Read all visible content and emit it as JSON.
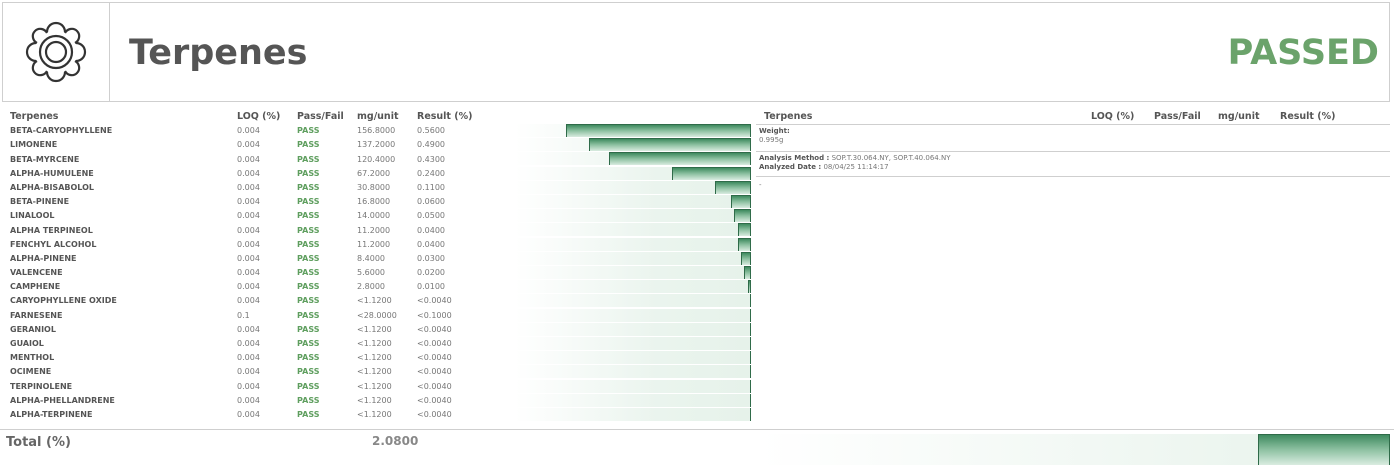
{
  "header": {
    "title": "Terpenes",
    "status": "PASSED",
    "logo_icon": "flower-icon"
  },
  "table": {
    "columns": [
      "Terpenes",
      "LOQ (%)",
      "Pass/Fail",
      "mg/unit",
      "Result (%)"
    ],
    "rows": [
      {
        "name": "BETA-CARYOPHYLLENE",
        "loq": "0.004",
        "pf": "PASS",
        "mg": "156.8000",
        "res": "0.5600",
        "bar": 0.56
      },
      {
        "name": "LIMONENE",
        "loq": "0.004",
        "pf": "PASS",
        "mg": "137.2000",
        "res": "0.4900",
        "bar": 0.49
      },
      {
        "name": "BETA-MYRCENE",
        "loq": "0.004",
        "pf": "PASS",
        "mg": "120.4000",
        "res": "0.4300",
        "bar": 0.43
      },
      {
        "name": "ALPHA-HUMULENE",
        "loq": "0.004",
        "pf": "PASS",
        "mg": "67.2000",
        "res": "0.2400",
        "bar": 0.24
      },
      {
        "name": "ALPHA-BISABOLOL",
        "loq": "0.004",
        "pf": "PASS",
        "mg": "30.8000",
        "res": "0.1100",
        "bar": 0.11
      },
      {
        "name": "BETA-PINENE",
        "loq": "0.004",
        "pf": "PASS",
        "mg": "16.8000",
        "res": "0.0600",
        "bar": 0.06
      },
      {
        "name": "LINALOOL",
        "loq": "0.004",
        "pf": "PASS",
        "mg": "14.0000",
        "res": "0.0500",
        "bar": 0.05
      },
      {
        "name": "ALPHA TERPINEOL",
        "loq": "0.004",
        "pf": "PASS",
        "mg": "11.2000",
        "res": "0.0400",
        "bar": 0.04
      },
      {
        "name": "FENCHYL ALCOHOL",
        "loq": "0.004",
        "pf": "PASS",
        "mg": "11.2000",
        "res": "0.0400",
        "bar": 0.04
      },
      {
        "name": "ALPHA-PINENE",
        "loq": "0.004",
        "pf": "PASS",
        "mg": "8.4000",
        "res": "0.0300",
        "bar": 0.03
      },
      {
        "name": "VALENCENE",
        "loq": "0.004",
        "pf": "PASS",
        "mg": "5.6000",
        "res": "0.0200",
        "bar": 0.02
      },
      {
        "name": "CAMPHENE",
        "loq": "0.004",
        "pf": "PASS",
        "mg": "2.8000",
        "res": "0.0100",
        "bar": 0.01
      },
      {
        "name": "CARYOPHYLLENE OXIDE",
        "loq": "0.004",
        "pf": "PASS",
        "mg": "<1.1200",
        "res": "<0.0040",
        "bar": 0
      },
      {
        "name": "FARNESENE",
        "loq": "0.1",
        "pf": "PASS",
        "mg": "<28.0000",
        "res": "<0.1000",
        "bar": 0
      },
      {
        "name": "GERANIOL",
        "loq": "0.004",
        "pf": "PASS",
        "mg": "<1.1200",
        "res": "<0.0040",
        "bar": 0
      },
      {
        "name": "GUAIOL",
        "loq": "0.004",
        "pf": "PASS",
        "mg": "<1.1200",
        "res": "<0.0040",
        "bar": 0
      },
      {
        "name": "MENTHOL",
        "loq": "0.004",
        "pf": "PASS",
        "mg": "<1.1200",
        "res": "<0.0040",
        "bar": 0
      },
      {
        "name": "OCIMENE",
        "loq": "0.004",
        "pf": "PASS",
        "mg": "<1.1200",
        "res": "<0.0040",
        "bar": 0
      },
      {
        "name": "TERPINOLENE",
        "loq": "0.004",
        "pf": "PASS",
        "mg": "<1.1200",
        "res": "<0.0040",
        "bar": 0
      },
      {
        "name": "ALPHA-PHELLANDRENE",
        "loq": "0.004",
        "pf": "PASS",
        "mg": "<1.1200",
        "res": "<0.0040",
        "bar": 0
      },
      {
        "name": "ALPHA-TERPINENE",
        "loq": "0.004",
        "pf": "PASS",
        "mg": "<1.1200",
        "res": "<0.0040",
        "bar": 0
      }
    ],
    "bar_max": 0.56
  },
  "right_panel": {
    "columns": [
      "Terpenes",
      "LOQ (%)",
      "Pass/Fail",
      "mg/unit",
      "Result (%)"
    ],
    "weight_label": "Weight:",
    "weight_value": "0.995g",
    "method_label": "Analysis Method :",
    "method_value": "SOP.T.30.064.NY, SOP.T.40.064.NY",
    "date_label": "Analyzed Date :",
    "date_value": "08/04/25 11:14:17",
    "note": "-"
  },
  "footer": {
    "total_label": "Total (%)",
    "total_value": "2.0800",
    "total_fraction": 0.21
  }
}
